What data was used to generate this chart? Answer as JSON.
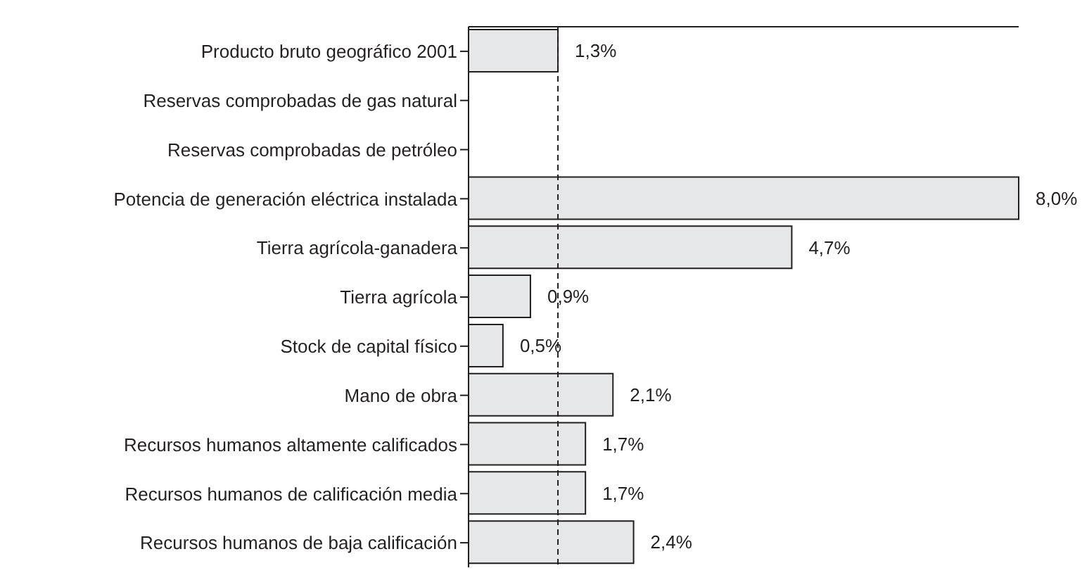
{
  "chart_data": {
    "type": "bar",
    "orientation": "horizontal",
    "categories": [
      "Producto bruto geográfico 2001",
      "Reservas comprobadas de gas natural",
      "Reservas comprobadas de petróleo",
      "Potencia de generación eléctrica instalada",
      "Tierra agrícola-ganadera",
      "Tierra agrícola",
      "Stock de capital físico",
      "Mano de obra",
      "Recursos humanos altamente calificados",
      "Recursos humanos de calificación media",
      "Recursos humanos de baja calificación"
    ],
    "values": [
      1.3,
      null,
      null,
      8.0,
      4.7,
      0.9,
      0.5,
      2.1,
      1.7,
      1.7,
      2.4
    ],
    "value_labels": [
      "1,3%",
      null,
      null,
      "8,0%",
      "4,7%",
      "0,9%",
      "0,5%",
      "2,1%",
      "1,7%",
      "1,7%",
      "2,4%"
    ],
    "color": "#e6e7e8",
    "ref_lines": [
      {
        "axis": "x",
        "value": 1.3,
        "line_style": "dashed",
        "color": "#231f20"
      }
    ]
  }
}
